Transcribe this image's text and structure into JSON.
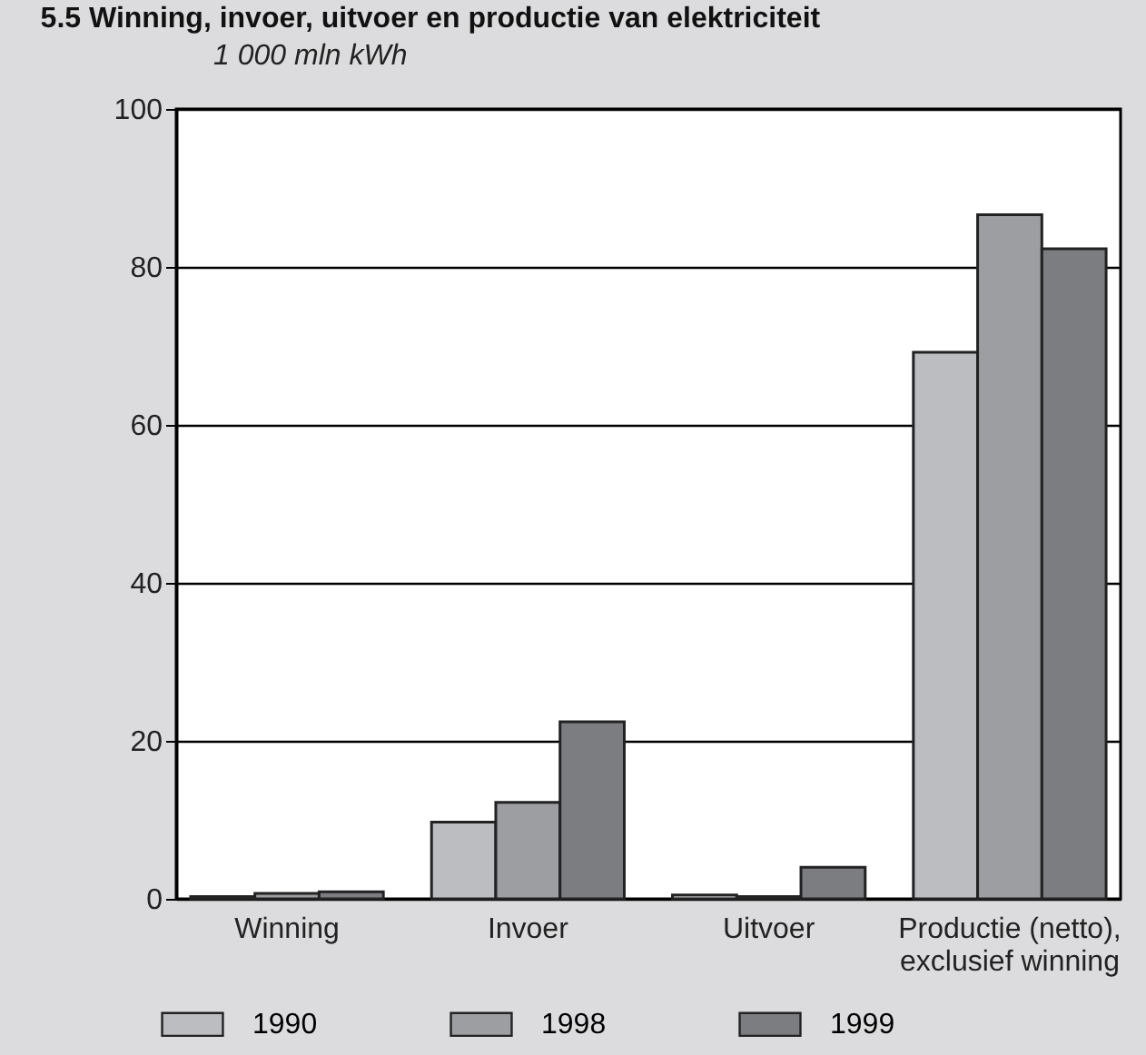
{
  "chart_data": {
    "type": "bar",
    "title": "5.5 Winning, invoer, uitvoer en productie van elektriciteit",
    "ylabel": "1 000 mln kWh",
    "categories": [
      "Winning",
      "Invoer",
      "Uitvoer",
      "Productie (netto), exclusief winning"
    ],
    "series": [
      {
        "name": "1990",
        "color": "#bcbdc1",
        "values": [
          0.3,
          9.7,
          0.5,
          69.2
        ]
      },
      {
        "name": "1998",
        "color": "#9d9ea2",
        "values": [
          0.7,
          12.2,
          0.3,
          86.6
        ]
      },
      {
        "name": "1999",
        "color": "#7c7d81",
        "values": [
          0.9,
          22.4,
          4.0,
          82.3
        ]
      }
    ],
    "ylim": [
      0,
      100
    ],
    "yticks": [
      0,
      20,
      40,
      60,
      80,
      100
    ],
    "grid": "y",
    "legend": "bottom"
  }
}
